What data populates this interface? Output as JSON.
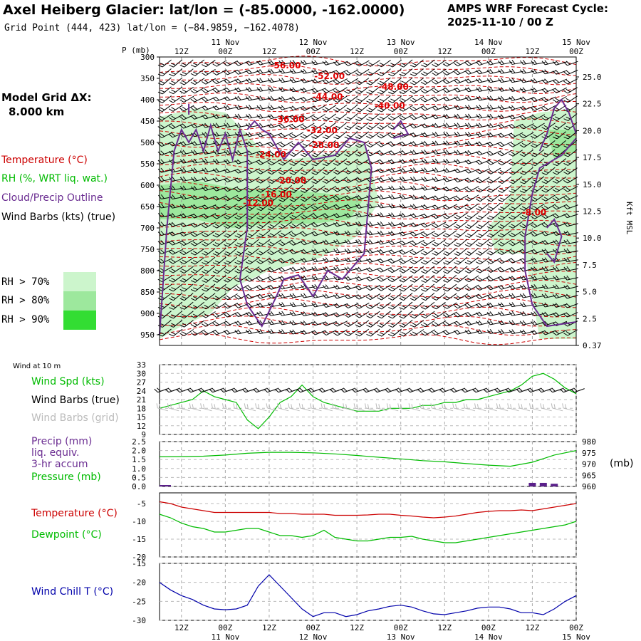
{
  "header": {
    "title": "Axel Heiberg Glacier:  lat/lon = (-85.0000, -162.0000)",
    "grid_point": "Grid Point (444, 423) lat/lon = (−84.9859, −162.4078)",
    "cycle_line1": "AMPS WRF Forecast Cycle:",
    "cycle_line2": "2025-11-10 / 00  Z"
  },
  "model_grid": {
    "label": "Model Grid ΔX:",
    "value": "8.000 km"
  },
  "legend_upper": {
    "temperature": "Temperature (°C)",
    "rh": "RH (%, WRT liq. wat.)",
    "cloud": "Cloud/Precip Outline",
    "wind": "Wind Barbs (kts) (true)",
    "rh70": "RH > 70%",
    "rh80": "RH > 80%",
    "rh90": "RH > 90%"
  },
  "legend_wind": {
    "header": "Wind at 10 m",
    "speed": "Wind Spd (kts)",
    "barbs_true": "Wind Barbs (true)",
    "barbs_grid": "Wind Barbs (grid)"
  },
  "legend_precip": {
    "line1": "Precip (mm)",
    "line2": "liq. equiv.",
    "line3": "3-hr accum",
    "line4": "Pressure (mb)",
    "unit_right": "(mb)"
  },
  "legend_temp": {
    "temperature": "Temperature (°C)",
    "dewpoint": "Dewpoint (°C)"
  },
  "legend_chill": {
    "label": "Wind Chill T (°C)"
  },
  "colors": {
    "temperature": "#cc0000",
    "dewpoint": "#00bb00",
    "pressure": "#00bb00",
    "wind_speed": "#00bb00",
    "cloud": "#6a2c91",
    "wind_chill": "#0000aa",
    "rh70": "#ccf5cc",
    "rh80": "#9de89d",
    "rh90": "#33dd33",
    "grid_barbs": "#bbbbbb",
    "isotherm_label": "#e00000",
    "precip_bar": "#5a1f8a"
  },
  "chart_data": [
    {
      "type": "line",
      "panel": "upper_cross_section",
      "ylabel_left": "P (mb)",
      "ylabel_right": "Kft MSL",
      "y_ticks_pressure": [
        "300",
        "350",
        "400",
        "450",
        "500",
        "550",
        "600",
        "650",
        "700",
        "750",
        "800",
        "850",
        "900",
        "950"
      ],
      "y_ticks_kft": [
        "25.0",
        "22.5",
        "20.0",
        "17.5",
        "15.0",
        "12.5",
        "10.0",
        "7.5",
        "5.0",
        "2.5",
        "0.37"
      ],
      "x_ticks_top": [
        "12Z",
        "00Z",
        "12Z",
        "00Z",
        "12Z",
        "00Z",
        "12Z",
        "00Z",
        "12Z",
        "00Z"
      ],
      "date_labels_top": [
        "11 Nov",
        "12 Nov",
        "13 Nov",
        "14 Nov",
        "15 Nov"
      ],
      "xlim_hours": [
        6,
        120
      ],
      "ylim_mb": [
        300,
        975
      ],
      "isotherm_labels": [
        {
          "text": "-56.00",
          "hour": 40.5,
          "p": 320
        },
        {
          "text": "-52.00",
          "hour": 52.5,
          "p": 345
        },
        {
          "text": "-48.00",
          "hour": 70,
          "p": 370
        },
        {
          "text": "-44.00",
          "hour": 52,
          "p": 393
        },
        {
          "text": "-40.00",
          "hour": 69,
          "p": 414
        },
        {
          "text": "-36.00",
          "hour": 41.5,
          "p": 446
        },
        {
          "text": "-32.00",
          "hour": 50.5,
          "p": 472
        },
        {
          "text": "-28.00",
          "hour": 51,
          "p": 507
        },
        {
          "text": "-24.00",
          "hour": 36.5,
          "p": 528
        },
        {
          "text": "-20.00",
          "hour": 42,
          "p": 589
        },
        {
          "text": "-16.00",
          "hour": 38,
          "p": 622
        },
        {
          "text": "-12.00",
          "hour": 33,
          "p": 642
        },
        {
          "text": "-8.00",
          "hour": 108.5,
          "p": 664
        }
      ],
      "rh_regions": [
        {
          "level": 70,
          "points": [
            [
              6,
              440
            ],
            [
              16,
              420
            ],
            [
              24,
              430
            ],
            [
              30,
              480
            ],
            [
              34,
              520
            ],
            [
              42,
              540
            ],
            [
              54,
              525
            ],
            [
              62,
              500
            ],
            [
              64,
              560
            ],
            [
              66,
              640
            ],
            [
              60,
              720
            ],
            [
              50,
              770
            ],
            [
              36,
              800
            ],
            [
              26,
              840
            ],
            [
              20,
              900
            ],
            [
              12,
              930
            ],
            [
              6,
              960
            ]
          ]
        },
        {
          "level": 80,
          "points": [
            [
              6,
              600
            ],
            [
              16,
              590
            ],
            [
              28,
              610
            ],
            [
              40,
              610
            ],
            [
              52,
              620
            ],
            [
              62,
              630
            ],
            [
              58,
              680
            ],
            [
              48,
              690
            ],
            [
              36,
              690
            ],
            [
              26,
              700
            ],
            [
              16,
              680
            ],
            [
              6,
              680
            ]
          ]
        },
        {
          "level": 70,
          "points": [
            [
              103,
              450
            ],
            [
              110,
              430
            ],
            [
              120,
              420
            ],
            [
              120,
              960
            ],
            [
              110,
              960
            ],
            [
              106,
              760
            ],
            [
              98,
              760
            ],
            [
              96,
              700
            ],
            [
              102,
              620
            ]
          ]
        },
        {
          "level": 80,
          "points": [
            [
              112,
              470
            ],
            [
              120,
              470
            ],
            [
              120,
              520
            ],
            [
              114,
              540
            ]
          ]
        }
      ],
      "cloud_outlines": [
        [
          [
            6,
            950
          ],
          [
            8,
            700
          ],
          [
            10,
            520
          ],
          [
            12,
            470
          ],
          [
            14,
            500
          ],
          [
            16,
            470
          ],
          [
            18,
            520
          ],
          [
            20,
            460
          ],
          [
            22,
            520
          ],
          [
            24,
            480
          ],
          [
            26,
            540
          ],
          [
            28,
            470
          ],
          [
            30,
            520
          ],
          [
            30,
            700
          ],
          [
            28,
            820
          ],
          [
            30,
            880
          ],
          [
            34,
            930
          ],
          [
            38,
            860
          ],
          [
            40,
            820
          ],
          [
            44,
            810
          ],
          [
            48,
            860
          ],
          [
            52,
            800
          ],
          [
            56,
            820
          ],
          [
            62,
            760
          ],
          [
            64,
            560
          ],
          [
            62,
            500
          ],
          [
            58,
            490
          ],
          [
            54,
            530
          ],
          [
            48,
            540
          ],
          [
            44,
            500
          ],
          [
            40,
            540
          ],
          [
            36,
            480
          ],
          [
            34,
            470
          ],
          [
            32,
            450
          ],
          [
            30,
            470
          ]
        ],
        [
          [
            70,
            470
          ],
          [
            72,
            450
          ],
          [
            74,
            480
          ],
          [
            70,
            490
          ]
        ],
        [
          [
            14,
            435
          ],
          [
            14,
            410
          ]
        ],
        [
          [
            120,
            490
          ],
          [
            116,
            530
          ],
          [
            110,
            560
          ],
          [
            108,
            620
          ],
          [
            106,
            720
          ],
          [
            106,
            800
          ],
          [
            108,
            880
          ],
          [
            112,
            930
          ],
          [
            120,
            920
          ]
        ],
        [
          [
            110,
            520
          ],
          [
            112,
            480
          ],
          [
            114,
            420
          ],
          [
            116,
            400
          ],
          [
            118,
            430
          ],
          [
            120,
            480
          ]
        ],
        [
          [
            112,
            700
          ],
          [
            114,
            680
          ],
          [
            116,
            720
          ],
          [
            114,
            780
          ],
          [
            112,
            760
          ]
        ]
      ]
    },
    {
      "type": "line",
      "panel": "wind_10m",
      "ylabel": "Wind Spd (kts)",
      "y_ticks": [
        "33",
        "30",
        "27",
        "24",
        "21",
        "18",
        "15",
        "12",
        "9"
      ],
      "ylim": [
        9,
        33
      ],
      "x": [
        6,
        9,
        12,
        15,
        18,
        21,
        24,
        27,
        30,
        33,
        36,
        39,
        42,
        45,
        48,
        51,
        54,
        57,
        60,
        63,
        66,
        69,
        72,
        75,
        78,
        81,
        84,
        87,
        90,
        93,
        96,
        99,
        102,
        105,
        108,
        111,
        114,
        117,
        120
      ],
      "values": [
        18,
        19,
        20,
        21,
        24,
        22,
        21,
        20,
        14,
        11,
        15,
        20,
        22,
        26,
        22,
        20,
        19,
        18,
        17,
        17,
        17,
        18,
        18,
        18,
        19,
        19,
        20,
        20,
        21,
        21,
        22,
        23,
        24,
        26,
        29,
        30,
        28,
        25,
        23
      ]
    },
    {
      "type": "line",
      "panel": "precip_pressure",
      "y_ticks_left": [
        "2.5",
        "2.0",
        "1.5",
        "1.0",
        "0.5",
        "0.0"
      ],
      "y_ticks_right": [
        "980",
        "975",
        "970",
        "965",
        "960"
      ],
      "ylim_left": [
        0,
        2.5
      ],
      "ylim_right": [
        960,
        980
      ],
      "x": [
        6,
        12,
        18,
        24,
        30,
        36,
        42,
        48,
        54,
        60,
        66,
        72,
        78,
        84,
        90,
        96,
        102,
        108,
        114,
        120
      ],
      "pressure": [
        973.2,
        973.3,
        973.5,
        974.0,
        974.8,
        975.2,
        975.2,
        975.0,
        974.5,
        973.8,
        973.0,
        972.3,
        971.5,
        971.0,
        970.2,
        969.5,
        969.0,
        970.8,
        974.0,
        976.0
      ],
      "precip_x": [
        108,
        111,
        114
      ],
      "precip": [
        0.2,
        0.2,
        0.15
      ]
    },
    {
      "type": "line",
      "panel": "temperature_dewpoint",
      "y_ticks": [
        "-5",
        "-10",
        "-15",
        "-20"
      ],
      "ylim": [
        -20,
        -2
      ],
      "x": [
        6,
        9,
        12,
        15,
        18,
        21,
        24,
        27,
        30,
        33,
        36,
        39,
        42,
        45,
        48,
        51,
        54,
        57,
        60,
        63,
        66,
        69,
        72,
        75,
        78,
        81,
        84,
        87,
        90,
        93,
        96,
        99,
        102,
        105,
        108,
        111,
        114,
        117,
        120
      ],
      "temperature": [
        -4.5,
        -5,
        -6,
        -6.5,
        -7,
        -7.5,
        -7.5,
        -7.5,
        -7.5,
        -7.5,
        -7.5,
        -7.8,
        -7.8,
        -8,
        -8,
        -8,
        -8.3,
        -8.3,
        -8.3,
        -8.2,
        -8,
        -8,
        -8.3,
        -8.5,
        -8.8,
        -9,
        -8.8,
        -8.5,
        -8,
        -7.5,
        -7.2,
        -7,
        -7,
        -6.8,
        -7,
        -6.5,
        -6,
        -5.5,
        -5
      ],
      "dewpoint": [
        -8,
        -9,
        -10.5,
        -11.5,
        -12,
        -13,
        -13,
        -12.5,
        -12,
        -12,
        -13,
        -14,
        -14,
        -14.5,
        -14,
        -12.5,
        -14.5,
        -15,
        -15.5,
        -15.5,
        -15,
        -14.5,
        -14.5,
        -14.2,
        -15,
        -15.5,
        -16,
        -16,
        -15.5,
        -15,
        -14.5,
        -14,
        -13.5,
        -13,
        -12.5,
        -12,
        -11.5,
        -11,
        -10
      ]
    },
    {
      "type": "line",
      "panel": "wind_chill",
      "ylabel": "Wind Chill T (°C)",
      "y_ticks": [
        "-15",
        "-20",
        "-25",
        "-30"
      ],
      "ylim": [
        -30,
        -15
      ],
      "x": [
        6,
        9,
        12,
        15,
        18,
        21,
        24,
        27,
        30,
        33,
        36,
        39,
        42,
        45,
        48,
        51,
        54,
        57,
        60,
        63,
        66,
        69,
        72,
        75,
        78,
        81,
        84,
        87,
        90,
        93,
        96,
        99,
        102,
        105,
        108,
        111,
        114,
        117,
        120
      ],
      "values": [
        -20,
        -22,
        -23.5,
        -24.5,
        -26,
        -27,
        -27.2,
        -27,
        -26,
        -21,
        -18,
        -21,
        -24,
        -27,
        -29,
        -28,
        -28,
        -29,
        -28.5,
        -27.5,
        -27,
        -26.3,
        -26,
        -26.5,
        -27.5,
        -28.3,
        -28.5,
        -28,
        -27.5,
        -26.8,
        -26.5,
        -26.5,
        -27,
        -28,
        -28,
        -28.5,
        -27,
        -25,
        -23.5
      ]
    }
  ],
  "x_axis_bottom": {
    "ticks": [
      "12Z",
      "00Z",
      "12Z",
      "00Z",
      "12Z",
      "00Z",
      "12Z",
      "00Z",
      "12Z",
      "00Z"
    ],
    "dates": [
      "11 Nov",
      "12 Nov",
      "13 Nov",
      "14 Nov",
      "15 Nov"
    ]
  }
}
